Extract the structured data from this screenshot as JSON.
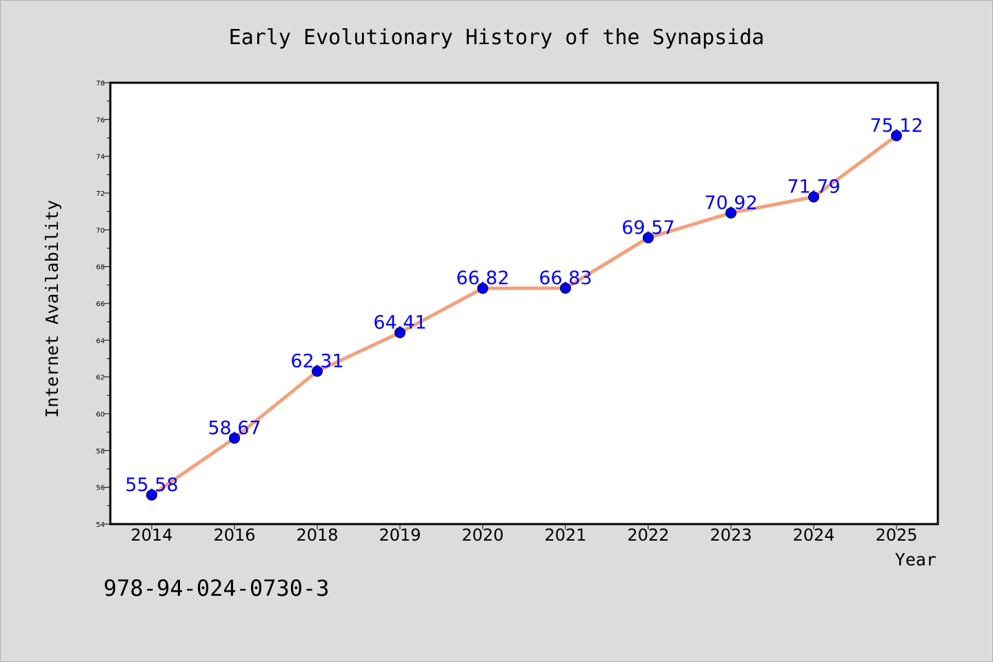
{
  "chart_data": {
    "type": "line",
    "title": "Early Evolutionary History of the Synapsida",
    "xlabel": "Year",
    "ylabel": "Internet Availability",
    "categories": [
      "2014",
      "2016",
      "2018",
      "2019",
      "2020",
      "2021",
      "2022",
      "2023",
      "2024",
      "2025"
    ],
    "values": [
      55.58,
      58.67,
      62.31,
      64.41,
      66.82,
      66.83,
      69.57,
      70.92,
      71.79,
      75.12
    ],
    "data_labels": [
      "55.58",
      "58.67",
      "62.31",
      "64.41",
      "66.82",
      "66.83",
      "69.57",
      "70.92",
      "71.79",
      "75.12"
    ],
    "ylim": [
      54,
      78
    ],
    "yticks": [
      54,
      56,
      58,
      60,
      62,
      64,
      66,
      68,
      70,
      72,
      74,
      76,
      78
    ],
    "yticks_minor": [
      55,
      57,
      59,
      61,
      63,
      65,
      67,
      69,
      71,
      73,
      75,
      77
    ],
    "grid": false,
    "legend": "none",
    "line_color": "#f4a07c",
    "marker_color": "#0000ee",
    "label_color": "#0000ff"
  },
  "footer": {
    "isbn": "978-94-024-0730-3"
  },
  "colors": {
    "background": "#dcdcdc",
    "plot_background": "#ffffff",
    "axis": "#000000"
  }
}
